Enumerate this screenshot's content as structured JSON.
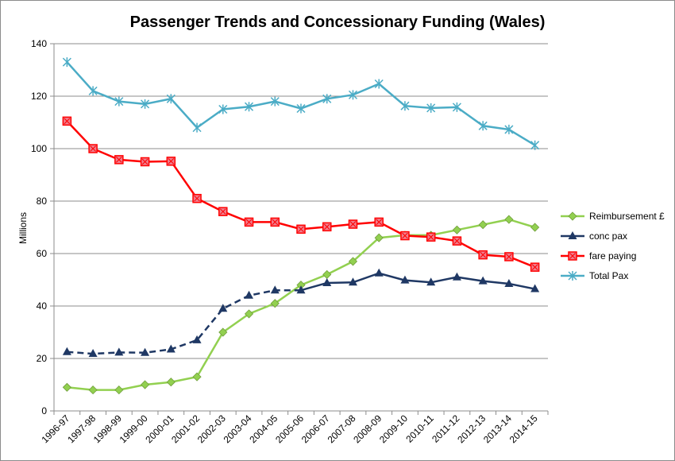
{
  "chart_data": {
    "type": "line",
    "title": "Passenger Trends and Concessionary Funding (Wales)",
    "xlabel": "",
    "ylabel": "Millions",
    "ylim": [
      0,
      140
    ],
    "yticks": [
      0,
      20,
      40,
      60,
      80,
      100,
      120,
      140
    ],
    "grid": true,
    "legend_position": "right",
    "categories": [
      "1996-97",
      "1997-98",
      "1998-99",
      "1999-00",
      "2000-01",
      "2001-02",
      "2002-03",
      "2003-04",
      "2004-05",
      "2005-06",
      "2006-07",
      "2007-08",
      "2008-09",
      "2009-10",
      "2010-11",
      "2011-12",
      "2012-13",
      "2013-14",
      "2014-15"
    ],
    "series": [
      {
        "name": "Reimbursement £",
        "color": "#92d050",
        "marker": "diamond",
        "dash": "solid",
        "values": [
          9,
          8,
          8,
          10,
          11,
          13,
          30,
          37,
          41,
          48,
          52,
          57,
          66,
          67,
          67,
          69,
          71,
          73,
          70
        ]
      },
      {
        "name": "conc pax",
        "color": "#1f3864",
        "marker": "triangle",
        "dash": "dashed-until-2005-06",
        "values": [
          22.5,
          21.8,
          22.3,
          22.2,
          23.5,
          27,
          39,
          44,
          46,
          46,
          48.8,
          49,
          52.5,
          49.8,
          49,
          51,
          49.5,
          48.5,
          46.5
        ]
      },
      {
        "name": "fare paying",
        "color": "#ff0000",
        "marker": "square",
        "dash": "solid",
        "values": [
          110.5,
          100,
          95.8,
          95,
          95.2,
          81,
          76,
          72,
          72,
          69.3,
          70.2,
          71.2,
          72,
          66.8,
          66.3,
          64.8,
          59.5,
          58.8,
          54.8
        ]
      },
      {
        "name": "Total Pax",
        "color": "#4bacc6",
        "marker": "star",
        "dash": "solid",
        "values": [
          133,
          122,
          118,
          117,
          119,
          108,
          115,
          116,
          118,
          115.3,
          119,
          120.5,
          124.7,
          116.3,
          115.5,
          115.8,
          108.7,
          107.3,
          101.3
        ]
      }
    ]
  }
}
